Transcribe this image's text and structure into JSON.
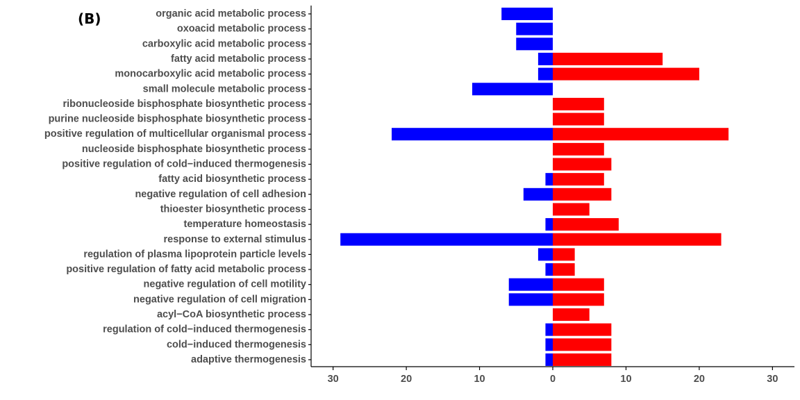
{
  "panel_label": "(B)",
  "colors": {
    "down": "#0000ff",
    "up": "#ff0000"
  },
  "chart_data": {
    "type": "bar",
    "orientation": "horizontal",
    "diverging": true,
    "categories": [
      "organic acid metabolic process",
      "oxoacid metabolic process",
      "carboxylic acid metabolic process",
      "fatty acid metabolic process",
      "monocarboxylic acid metabolic process",
      "small molecule metabolic process",
      "ribonucleoside bisphosphate biosynthetic process",
      "purine nucleoside bisphosphate biosynthetic process",
      "positive regulation of multicellular organismal process",
      "nucleoside bisphosphate biosynthetic process",
      "positive regulation of cold−induced thermogenesis",
      "fatty acid biosynthetic process",
      "negative regulation of cell adhesion",
      "thioester biosynthetic process",
      "temperature homeostasis",
      "response to external stimulus",
      "regulation of plasma lipoprotein particle levels",
      "positive regulation of fatty acid metabolic process",
      "negative regulation of cell motility",
      "negative regulation of cell migration",
      "acyl−CoA biosynthetic process",
      "regulation of cold−induced thermogenesis",
      "cold−induced thermogenesis",
      "adaptive thermogenesis"
    ],
    "series": [
      {
        "color": "#0000ff",
        "values": [
          7,
          5,
          5,
          2,
          2,
          11,
          0,
          0,
          22,
          0,
          0,
          1,
          4,
          0,
          1,
          29,
          2,
          1,
          6,
          6,
          0,
          1,
          1,
          1
        ]
      },
      {
        "color": "#ff0000",
        "values": [
          0,
          0,
          0,
          15,
          20,
          0,
          7,
          7,
          24,
          7,
          8,
          7,
          8,
          5,
          9,
          23,
          3,
          3,
          7,
          7,
          5,
          8,
          8,
          8
        ]
      }
    ],
    "xlim": [
      -33,
      33
    ],
    "xticks": [
      -30,
      -20,
      -10,
      0,
      10,
      20,
      30
    ],
    "xtick_labels": [
      "30",
      "20",
      "10",
      "0",
      "10",
      "20",
      "30"
    ],
    "xlabel": "",
    "ylabel": "",
    "grid": false,
    "legend": "none"
  }
}
